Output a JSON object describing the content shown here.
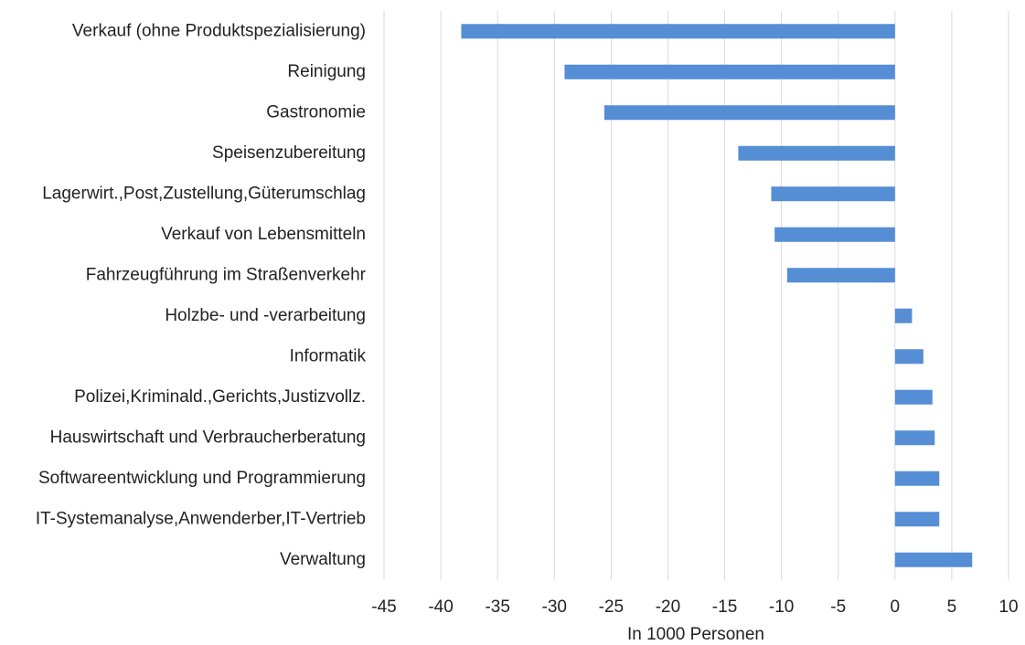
{
  "chart_data": {
    "type": "hbar",
    "x_label": "In 1000 Personen",
    "categories": [
      "Verkauf (ohne Produktspezialisierung)",
      "Reinigung",
      "Gastronomie",
      "Speisenzubereitung",
      "Lagerwirt.,Post,Zustellung,Güterumschlag",
      "Verkauf von Lebensmitteln",
      "Fahrzeugführung im Straßenverkehr",
      "Holzbe- und -verarbeitung",
      "Informatik",
      "Polizei,Kriminald.,Gerichts,Justizvollz.",
      "Hauswirtschaft und Verbraucherberatung",
      "Softwareentwicklung und Programmierung",
      "IT-Systemanalyse,Anwenderber,IT-Vertrieb",
      "Verwaltung"
    ],
    "values": [
      -38.2,
      -29.1,
      -25.6,
      -13.8,
      -10.9,
      -10.6,
      -9.5,
      1.5,
      2.5,
      3.3,
      3.5,
      3.9,
      3.9,
      6.8
    ],
    "color": "#558ed5",
    "xlim": [
      -45,
      10
    ],
    "xticks": [
      -45,
      -40,
      -35,
      -30,
      -25,
      -20,
      -15,
      -10,
      -5,
      0,
      5,
      10
    ],
    "grid": true
  }
}
